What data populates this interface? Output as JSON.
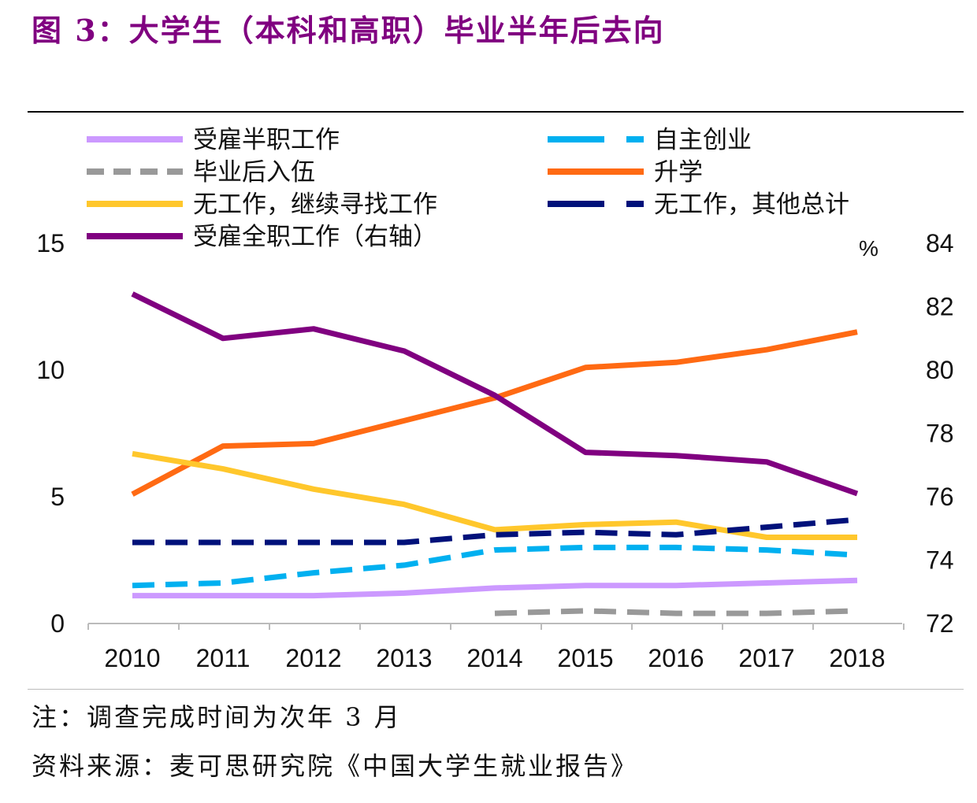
{
  "title": "图 3：大学生（本科和高职）毕业半年后去向",
  "note": "注：调查完成时间为次年 3 月",
  "source": "资料来源：麦可思研究院《中国大学生就业报告》",
  "chart_data": {
    "type": "line",
    "title": "",
    "unit_label": "%",
    "categories": [
      "2010",
      "2011",
      "2012",
      "2013",
      "2014",
      "2015",
      "2016",
      "2017",
      "2018"
    ],
    "left_axis": {
      "range": [
        0,
        15
      ],
      "ticks": [
        "0",
        "5",
        "10",
        "15"
      ]
    },
    "right_axis": {
      "range": [
        72,
        84
      ],
      "ticks": [
        "72",
        "74",
        "76",
        "78",
        "80",
        "82",
        "84"
      ]
    },
    "legend_position": "top",
    "series": [
      {
        "name": "受雇半职工作",
        "color": "#cc99ff",
        "dash": false,
        "axis": "left",
        "values": [
          1.1,
          1.1,
          1.1,
          1.2,
          1.4,
          1.5,
          1.5,
          1.6,
          1.7
        ]
      },
      {
        "name": "自主创业",
        "color": "#00b0f0",
        "dash": true,
        "axis": "left",
        "values": [
          1.5,
          1.6,
          2.0,
          2.3,
          2.9,
          3.0,
          3.0,
          2.9,
          2.7
        ]
      },
      {
        "name": "毕业后入伍",
        "color": "#999999",
        "dash": true,
        "axis": "left",
        "values": [
          null,
          null,
          null,
          null,
          0.4,
          0.5,
          0.4,
          0.4,
          0.5
        ]
      },
      {
        "name": "升学",
        "color": "#ff6a13",
        "dash": false,
        "axis": "left",
        "values": [
          5.1,
          7.0,
          7.1,
          8.0,
          8.9,
          10.1,
          10.3,
          10.8,
          11.5
        ]
      },
      {
        "name": "无工作，继续寻找工作",
        "color": "#ffc72c",
        "dash": false,
        "axis": "left",
        "values": [
          6.7,
          6.1,
          5.3,
          4.7,
          3.7,
          3.9,
          4.0,
          3.4,
          3.4
        ]
      },
      {
        "name": "无工作，其他总计",
        "color": "#00117a",
        "dash": true,
        "axis": "left",
        "values": [
          3.2,
          3.2,
          3.2,
          3.2,
          3.5,
          3.6,
          3.5,
          3.8,
          4.1
        ]
      },
      {
        "name": "受雇全职工作（右轴）",
        "color": "#800080",
        "dash": false,
        "axis": "right",
        "values": [
          82.4,
          81.0,
          81.3,
          80.6,
          79.2,
          77.4,
          77.3,
          77.1,
          76.1
        ]
      }
    ]
  }
}
